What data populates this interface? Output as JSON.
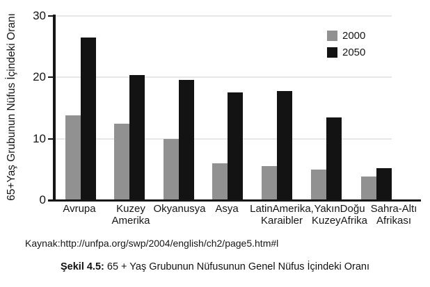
{
  "source_line": "Kaynak:http://unfpa.org/swp/2004/english/ch2/page5.htm#l",
  "caption": {
    "label": "Şekil 4.5:",
    "text": " 65 + Yaş Grubunun Nüfusunun Genel Nüfus İçindeki Oranı"
  },
  "chart_data": {
    "type": "bar",
    "title": "",
    "xlabel": "",
    "ylabel": "65+Yaş Grubunun Nüfus İçindeki Oranı",
    "ylim": [
      0,
      30
    ],
    "yticks": [
      0,
      10,
      20,
      30
    ],
    "ytick_labels": [
      "0",
      "10",
      "20",
      "30"
    ],
    "grid": true,
    "legend_position": "top-right",
    "categories": [
      "Avrupa",
      "Kuzey\nAmerika",
      "Okyanusya",
      "Asya",
      "LatinAmerika,\nKaraibler",
      "YakınDoğu\nKuzeyAfrika",
      "Sahra-Altı\nAfrikası"
    ],
    "series": [
      {
        "name": "2000",
        "color": "#919191",
        "values": [
          13.8,
          12.5,
          10,
          6,
          5.5,
          5,
          3.8
        ]
      },
      {
        "name": "2050",
        "color": "#131313",
        "values": [
          26.5,
          20.4,
          19.6,
          17.6,
          17.8,
          13.5,
          5.2
        ]
      }
    ],
    "colors": {
      "gridline": "#e7e7e7",
      "axis": "#161616"
    }
  }
}
